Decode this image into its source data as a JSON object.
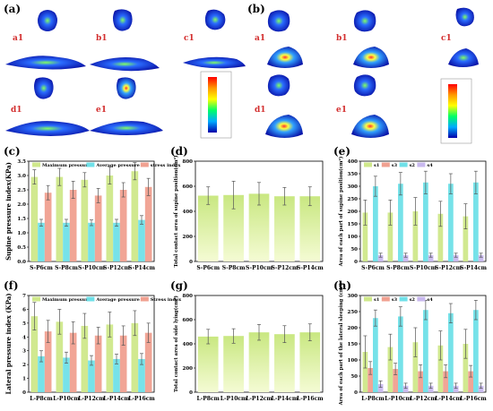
{
  "panel_labels": {
    "a": "(a)",
    "b": "(b)",
    "c": "(c)",
    "d": "(d)",
    "e": "(e)",
    "f": "(f)",
    "g": "(g)",
    "h": "(h)"
  },
  "subplots_a": [
    "a1",
    "b1",
    "c1",
    "d1",
    "e1"
  ],
  "subplots_b": [
    "a1",
    "b1",
    "c1",
    "d1",
    "e1"
  ],
  "colors": {
    "lime": "#cfe88a",
    "cyan": "#6fe0e8",
    "salmon": "#f0a090",
    "lavender": "#c8b8ee",
    "green_grad": "#e8f5a8"
  },
  "chart_data": [
    {
      "id": "c",
      "type": "bar",
      "ylabel": "Supine pressure index(KPa)",
      "categories": [
        "S-P6cm",
        "S-P8cm",
        "S-P10cm",
        "S-P12cm",
        "S-P14cm"
      ],
      "ylim": [
        0.0,
        3.5
      ],
      "yticks": [
        "0.0",
        "0.5",
        "1.0",
        "1.5",
        "2.0",
        "2.5",
        "3.0",
        "3.5"
      ],
      "series": [
        {
          "name": "Maximum pressure",
          "color": "#cfe88a",
          "values": [
            2.95,
            2.95,
            2.85,
            3.0,
            3.15
          ],
          "err": [
            0.25,
            0.3,
            0.25,
            0.3,
            0.3
          ]
        },
        {
          "name": "Average pressure",
          "color": "#6fe0e8",
          "values": [
            1.35,
            1.35,
            1.35,
            1.35,
            1.45
          ],
          "err": [
            0.12,
            0.12,
            0.1,
            0.12,
            0.15
          ]
        },
        {
          "name": "stress index",
          "color": "#f0a090",
          "values": [
            2.4,
            2.5,
            2.3,
            2.5,
            2.6
          ],
          "err": [
            0.25,
            0.3,
            0.25,
            0.25,
            0.3
          ]
        }
      ]
    },
    {
      "id": "d",
      "type": "bar",
      "ylabel": "Total contact area of supine position(cm²)",
      "categories": [
        "S-P6cm",
        "S-P8cm",
        "S-P10cm",
        "S-P12cm",
        "S-P14cm"
      ],
      "ylim": [
        0,
        800
      ],
      "yticks": [
        "0",
        "200",
        "400",
        "600",
        "800"
      ],
      "series": [
        {
          "name": "",
          "color": "#e8f5a8",
          "values": [
            525,
            530,
            540,
            520,
            520
          ],
          "err": [
            70,
            110,
            90,
            70,
            75
          ]
        }
      ]
    },
    {
      "id": "e",
      "type": "bar",
      "ylabel": "Area of each part of supine position(cm²)",
      "categories": [
        "S-P6cm",
        "S-P8cm",
        "S-P10cm",
        "S-P12cm",
        "S-P14cm"
      ],
      "ylim": [
        0,
        400
      ],
      "yticks": [
        "0",
        "50",
        "100",
        "150",
        "200",
        "250",
        "300",
        "350",
        "400"
      ],
      "series": [
        {
          "name": "s1",
          "color": "#cfe88a",
          "values": [
            195,
            195,
            200,
            190,
            180
          ],
          "err": [
            50,
            50,
            55,
            50,
            50
          ]
        },
        {
          "name": "s3",
          "color": "#f0a090",
          "values": [
            0,
            0,
            0,
            0,
            0
          ],
          "err": [
            0,
            0,
            0,
            0,
            0
          ]
        },
        {
          "name": "s2",
          "color": "#6fe0e8",
          "values": [
            300,
            310,
            315,
            310,
            315
          ],
          "err": [
            40,
            45,
            45,
            40,
            45
          ]
        },
        {
          "name": "s4",
          "color": "#c8b8ee",
          "values": [
            25,
            25,
            25,
            25,
            25
          ],
          "err": [
            8,
            8,
            8,
            8,
            8
          ]
        }
      ]
    },
    {
      "id": "f",
      "type": "bar",
      "ylabel": "Lateral pressure index (KPa)",
      "categories": [
        "L-P8cm",
        "L-P10cm",
        "L-P12cm",
        "L-P14cm",
        "L-P16cm"
      ],
      "ylim": [
        0,
        7
      ],
      "yticks": [
        "0",
        "1",
        "2",
        "3",
        "4",
        "5",
        "6",
        "7"
      ],
      "series": [
        {
          "name": "Maximum pressure",
          "color": "#cfe88a",
          "values": [
            5.5,
            5.1,
            4.8,
            4.9,
            5.0
          ],
          "err": [
            1.0,
            0.9,
            0.9,
            0.9,
            0.9
          ]
        },
        {
          "name": "Average pressure",
          "color": "#6fe0e8",
          "values": [
            2.6,
            2.5,
            2.3,
            2.4,
            2.4
          ],
          "err": [
            0.4,
            0.4,
            0.35,
            0.35,
            0.4
          ]
        },
        {
          "name": "Stress index",
          "color": "#f0a090",
          "values": [
            4.4,
            4.3,
            4.1,
            4.1,
            4.3
          ],
          "err": [
            0.8,
            0.8,
            0.6,
            0.7,
            0.7
          ]
        }
      ]
    },
    {
      "id": "g",
      "type": "bar",
      "ylabel": "Total contact area of side lying(cm²)",
      "categories": [
        "L-P8cm",
        "L-P10cm",
        "L-P12cm",
        "L-P14cm",
        "L-P16cm"
      ],
      "ylim": [
        0,
        800
      ],
      "yticks": [
        "0",
        "200",
        "400",
        "600",
        "800"
      ],
      "series": [
        {
          "name": "",
          "color": "#e8f5a8",
          "values": [
            460,
            465,
            495,
            480,
            495
          ],
          "err": [
            60,
            60,
            65,
            70,
            70
          ]
        }
      ]
    },
    {
      "id": "h",
      "type": "bar",
      "ylabel": "Area of each part of the lateral sleeping (cm²)",
      "categories": [
        "L-P8cm",
        "L-P10cm",
        "L-P12cm",
        "L-P14cm",
        "L-P16cm"
      ],
      "ylim": [
        0,
        300
      ],
      "yticks": [
        "0",
        "50",
        "100",
        "150",
        "200",
        "250",
        "300"
      ],
      "series": [
        {
          "name": "s1",
          "color": "#cfe88a",
          "values": [
            125,
            140,
            155,
            145,
            150
          ],
          "err": [
            50,
            40,
            45,
            45,
            45
          ]
        },
        {
          "name": "s3",
          "color": "#f0a090",
          "values": [
            75,
            72,
            65,
            65,
            65
          ],
          "err": [
            20,
            18,
            20,
            20,
            18
          ]
        },
        {
          "name": "s2",
          "color": "#6fe0e8",
          "values": [
            230,
            235,
            255,
            245,
            255
          ],
          "err": [
            25,
            30,
            30,
            30,
            30
          ]
        },
        {
          "name": "s4",
          "color": "#c8b8ee",
          "values": [
            25,
            20,
            20,
            20,
            20
          ],
          "err": [
            10,
            8,
            8,
            8,
            8
          ]
        }
      ]
    }
  ]
}
